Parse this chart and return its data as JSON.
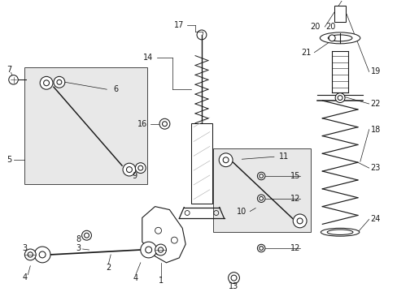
{
  "bg_color": "#ffffff",
  "line_color": "#1a1a1a",
  "box_fill": "#e8e8e8",
  "figsize": [
    4.89,
    3.6
  ],
  "dpi": 100,
  "lw": 0.75
}
